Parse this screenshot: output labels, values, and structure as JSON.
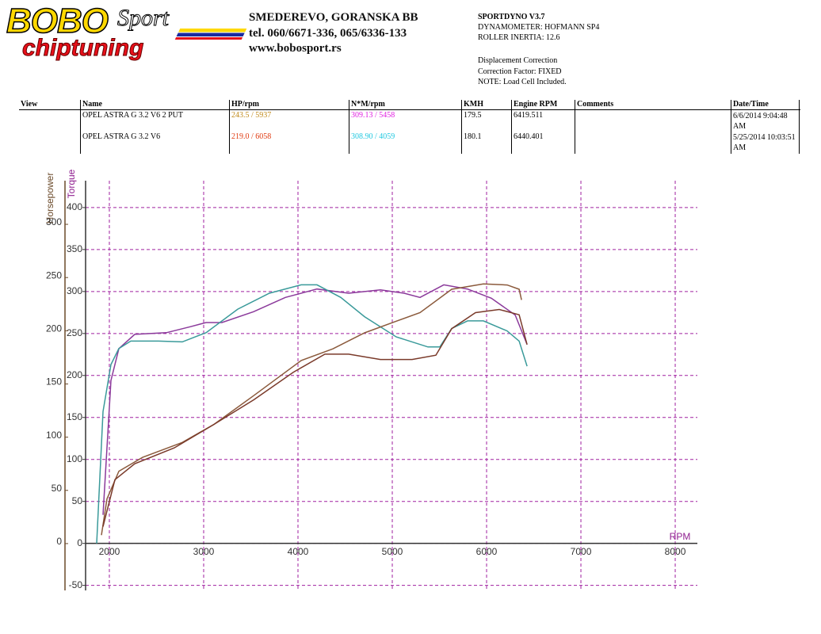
{
  "header": {
    "logo_main": "BOBO",
    "logo_script": "Sport",
    "logo_sub": "chiptuning",
    "address": [
      "SMEDEREVO, GORANSKA BB",
      "tel. 060/6671-336, 065/6336-133",
      "www.bobosport.rs"
    ],
    "dyno": [
      "SPORTDYNO V3.7",
      "DYNAMOMETER: HOFMANN SP4",
      "ROLLER INERTIA:  12.6",
      "Displacement Correction",
      "Correction Factor: FIXED",
      "NOTE: Load Cell Included."
    ]
  },
  "table": {
    "columns": [
      "View",
      "Name",
      "HP/rpm",
      "N*M/rpm",
      "KMH",
      "Engine RPM",
      "Comments",
      "Date/Time"
    ],
    "rows": [
      [
        "OPEL ASTRA G 3.2 V6 2 PUT",
        "243.5 / 5937",
        "309.13 / 5458",
        "179.5",
        "6419.511",
        "6/6/2014 9:04:48 AM"
      ],
      [
        "OPEL ASTRA G 3.2 V6",
        "219.0 / 6058",
        "308.90 / 4059",
        "180.1",
        "6440.401",
        "5/25/2014 10:03:51 AM"
      ]
    ]
  },
  "chart_data": {
    "type": "line",
    "x_label": "RPM",
    "y_label": "Horsepower",
    "y2_label": "Torque",
    "xlim": [
      1748,
      8235
    ],
    "xticks": [
      2000,
      3000,
      4000,
      5000,
      6000,
      7000,
      8000
    ],
    "ylim": [
      -44,
      341
    ],
    "yticks": [
      0,
      50,
      100,
      150,
      200,
      250,
      300
    ],
    "y2lim": [
      -56,
      432
    ],
    "y2ticks": [
      -50,
      0,
      50,
      100,
      150,
      200,
      250,
      300,
      350,
      400
    ],
    "grid": true,
    "series": [
      {
        "name": "OPEL ASTRA G 3.2 V6 2 PUT",
        "color": "#8b3a9b",
        "axis": "y2",
        "x": [
          1933,
          2017,
          2101,
          2269,
          2605,
          2857,
          3025,
          3193,
          3529,
          3866,
          4202,
          4538,
          4874,
          5126,
          5294,
          5546,
          5798,
          6050,
          6303,
          6429
        ],
        "values": [
          34,
          194,
          232,
          249,
          251,
          258,
          263,
          263,
          276,
          293,
          303,
          298,
          302,
          298,
          293,
          308,
          303,
          292,
          272,
          237
        ]
      },
      {
        "name": "OPEL ASTRA G 3.2 V6",
        "color": "#3a9a9a",
        "axis": "y2",
        "x": [
          1866,
          1933,
          2017,
          2100,
          2227,
          2520,
          2773,
          3025,
          3361,
          3697,
          4034,
          4202,
          4454,
          4706,
          5042,
          5378,
          5504,
          5630,
          5798,
          5966,
          6218,
          6345,
          6429
        ],
        "values": [
          0,
          157,
          213,
          232,
          241,
          241,
          240,
          251,
          279,
          298,
          308,
          308,
          293,
          270,
          246,
          234,
          234,
          256,
          265,
          265,
          253,
          241,
          211
        ]
      },
      {
        "name": "OPEL ASTRA G 3.2 V6 2 PUT",
        "color": "#8b5a3c",
        "x": [
          1916,
          1975,
          2101,
          2353,
          2773,
          3109,
          3529,
          4034,
          4370,
          4706,
          5042,
          5294,
          5630,
          5966,
          6218,
          6345,
          6370
        ],
        "values": [
          8,
          42,
          68,
          81,
          95,
          112,
          139,
          172,
          183,
          198,
          209,
          217,
          239,
          244,
          243,
          239,
          229
        ]
      },
      {
        "name": "OPEL ASTRA G 3.2 V6",
        "color": "#7a3a2a",
        "x": [
          1933,
          2059,
          2269,
          2689,
          3109,
          3529,
          3950,
          4286,
          4538,
          4874,
          5210,
          5462,
          5630,
          5882,
          6134,
          6345,
          6429
        ],
        "values": [
          16,
          60,
          75,
          90,
          112,
          135,
          161,
          178,
          178,
          173,
          173,
          177,
          202,
          217,
          220,
          215,
          187
        ]
      }
    ]
  }
}
